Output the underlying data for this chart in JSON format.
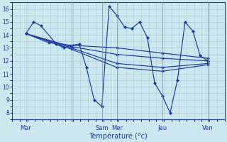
{
  "xlabel": "Température (°c)",
  "bg_color": "#cce8ee",
  "line_color": "#1a3aaa",
  "grid_color": "#a8c8d0",
  "spine_color": "#2244bb",
  "ylim": [
    7.5,
    16.5
  ],
  "yticks": [
    8,
    9,
    10,
    11,
    12,
    13,
    14,
    15,
    16
  ],
  "xlim": [
    -0.3,
    4.3
  ],
  "xtick_positions": [
    0,
    1,
    1.67,
    2,
    3,
    4
  ],
  "xtick_labels": [
    "Mar",
    "",
    "Sam",
    "Mer",
    "Jeu",
    "Ven"
  ],
  "vlines": [
    1,
    1.67,
    2,
    3,
    4
  ],
  "lines": [
    [
      [
        0,
        14.1
      ],
      [
        0.17,
        15.0
      ],
      [
        0.33,
        14.7
      ],
      [
        0.67,
        13.3
      ],
      [
        0.83,
        13.0
      ],
      [
        1.0,
        13.2
      ],
      [
        1.17,
        13.3
      ],
      [
        1.33,
        11.5
      ],
      [
        1.5,
        9.0
      ],
      [
        1.67,
        8.5
      ],
      [
        1.83,
        16.2
      ],
      [
        2.0,
        15.5
      ],
      [
        2.17,
        14.6
      ],
      [
        2.33,
        14.5
      ],
      [
        2.5,
        15.0
      ],
      [
        2.67,
        13.8
      ],
      [
        2.83,
        10.3
      ],
      [
        3.0,
        9.3
      ],
      [
        3.17,
        8.0
      ],
      [
        3.33,
        10.5
      ],
      [
        3.5,
        15.0
      ],
      [
        3.67,
        14.3
      ],
      [
        3.83,
        12.4
      ],
      [
        4.0,
        12.0
      ]
    ],
    [
      [
        0,
        14.1
      ],
      [
        0.5,
        13.4
      ],
      [
        1.0,
        13.2
      ],
      [
        2.0,
        13.0
      ],
      [
        3.0,
        12.6
      ],
      [
        4.0,
        12.2
      ]
    ],
    [
      [
        0,
        14.1
      ],
      [
        1.0,
        13.1
      ],
      [
        2.0,
        12.5
      ],
      [
        3.0,
        12.2
      ],
      [
        4.0,
        12.0
      ]
    ],
    [
      [
        0,
        14.1
      ],
      [
        1.0,
        13.0
      ],
      [
        2.0,
        11.8
      ],
      [
        3.0,
        11.5
      ],
      [
        4.0,
        11.8
      ]
    ],
    [
      [
        0,
        14.1
      ],
      [
        1.0,
        12.9
      ],
      [
        2.0,
        11.5
      ],
      [
        3.0,
        11.2
      ],
      [
        4.0,
        11.7
      ]
    ]
  ]
}
